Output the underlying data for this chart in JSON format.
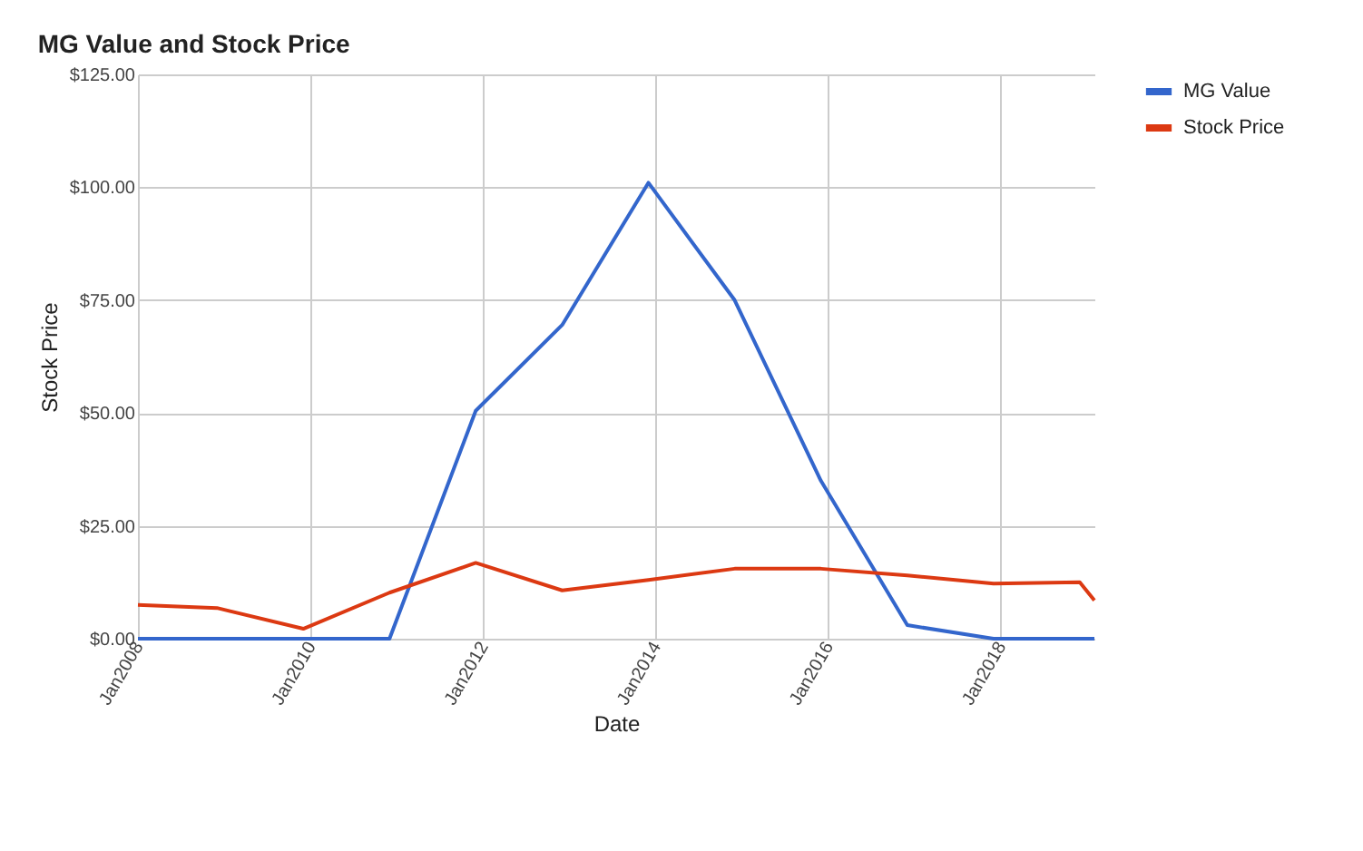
{
  "chart_data": {
    "type": "line",
    "title": "MG Value and Stock Price",
    "xlabel": "Date",
    "ylabel": "Stock Price",
    "x": [
      "2008-01",
      "2008-12",
      "2009-12",
      "2010-12",
      "2011-12",
      "2012-12",
      "2013-12",
      "2014-12",
      "2015-12",
      "2016-12",
      "2017-12",
      "2018-12",
      "2019-02"
    ],
    "series": [
      {
        "name": "MG Value",
        "color": "#3366cc",
        "values": [
          0,
          0,
          0,
          0,
          50.5,
          69.5,
          101,
          75,
          35,
          3,
          0,
          0,
          0
        ]
      },
      {
        "name": "Stock Price",
        "color": "#dc3912",
        "values": [
          7.5,
          6.8,
          2.2,
          10.2,
          16.8,
          10.7,
          13,
          15.5,
          15.5,
          14,
          12.2,
          12.5,
          8.5
        ]
      }
    ],
    "xlim": [
      "2008-01",
      "2019-02"
    ],
    "xticks": [
      {
        "value": "2008-01",
        "label": "Jan2008"
      },
      {
        "value": "2010-01",
        "label": "Jan2010"
      },
      {
        "value": "2012-01",
        "label": "Jan2012"
      },
      {
        "value": "2014-01",
        "label": "Jan2014"
      },
      {
        "value": "2016-01",
        "label": "Jan2016"
      },
      {
        "value": "2018-01",
        "label": "Jan2018"
      }
    ],
    "ylim": [
      0,
      125
    ],
    "yticks": [
      {
        "value": 0,
        "label": "$0.00"
      },
      {
        "value": 25,
        "label": "$25.00"
      },
      {
        "value": 50,
        "label": "$50.00"
      },
      {
        "value": 75,
        "label": "$75.00"
      },
      {
        "value": 100,
        "label": "$100.00"
      },
      {
        "value": 125,
        "label": "$125.00"
      }
    ],
    "grid": true,
    "legend": "top right",
    "marker": "none",
    "line_style": "solid"
  }
}
